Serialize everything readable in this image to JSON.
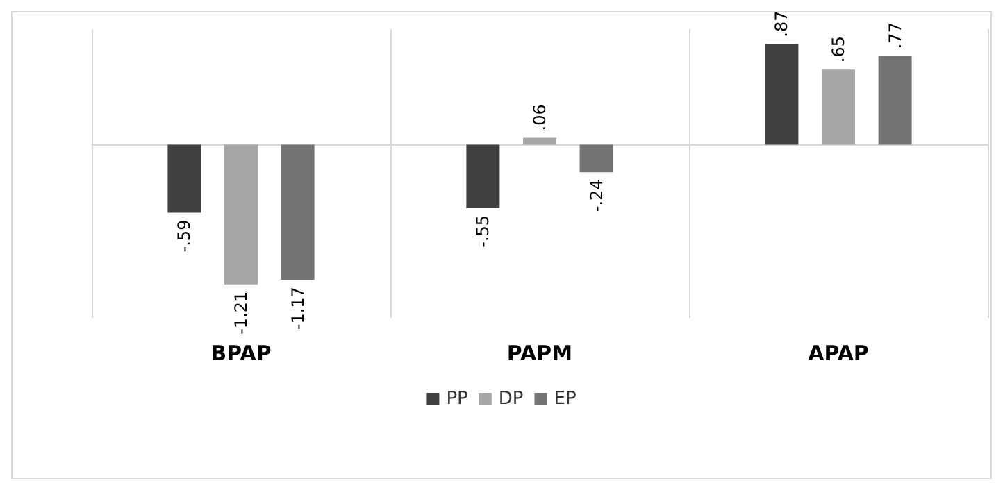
{
  "chart_data": {
    "type": "bar",
    "categories": [
      "BPAP",
      "PAPM",
      "APAP"
    ],
    "series": [
      {
        "name": "PP",
        "color": "#404040",
        "values": [
          -0.59,
          -0.55,
          0.87
        ],
        "value_labels": [
          "-.59",
          "-.55",
          ".87"
        ]
      },
      {
        "name": "DP",
        "color": "#a6a6a6",
        "values": [
          -1.21,
          0.06,
          0.65
        ],
        "value_labels": [
          "-1.21",
          ".06",
          ".65"
        ]
      },
      {
        "name": "EP",
        "color": "#737373",
        "values": [
          -1.17,
          -0.24,
          0.77
        ],
        "value_labels": [
          "-1.17",
          "-.24",
          ".77"
        ]
      }
    ],
    "grid": "x",
    "legend": "bottom"
  }
}
